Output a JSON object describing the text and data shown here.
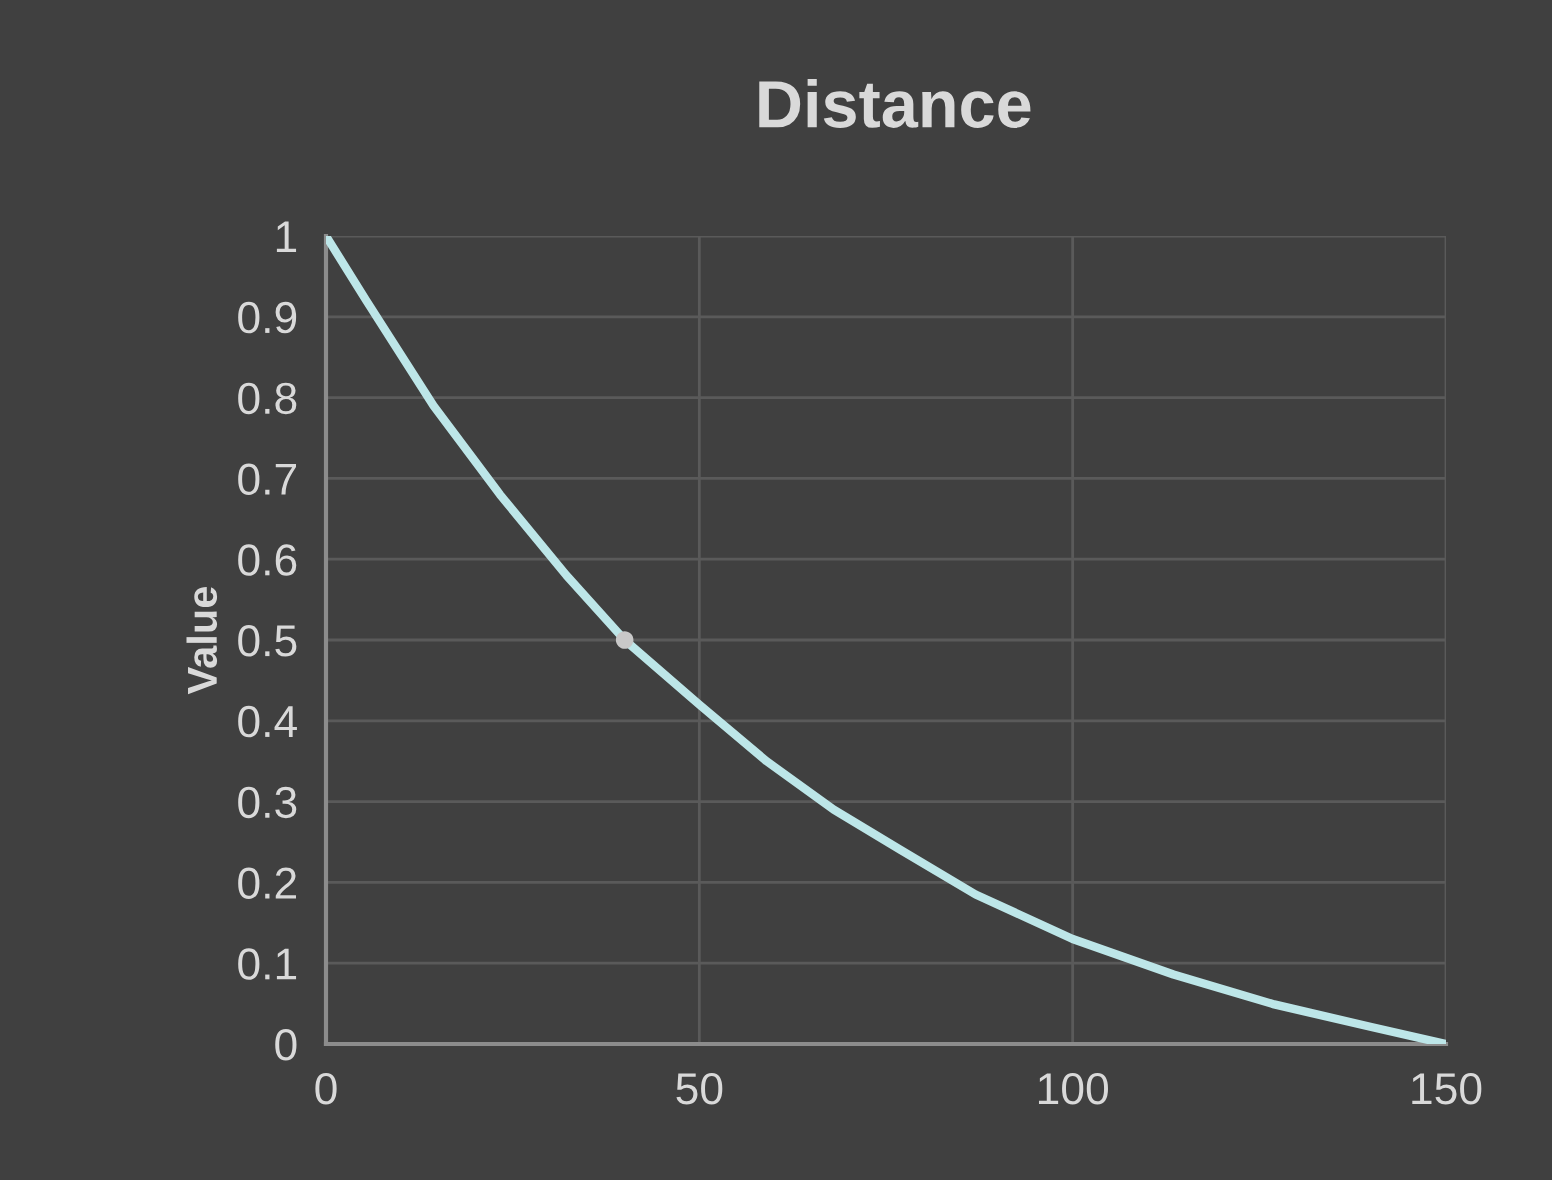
{
  "chart_data": {
    "type": "line",
    "title": "Distance",
    "ylabel": "Value",
    "series": [
      {
        "color": "#bde6e8",
        "x": [
          0,
          5.4,
          14.4,
          23.3,
          32.2,
          40,
          50,
          59,
          68,
          77,
          87,
          100,
          113.5,
          127,
          140,
          150
        ],
        "values": [
          1,
          0.92,
          0.79,
          0.68,
          0.58,
          0.5,
          0.42,
          0.35,
          0.29,
          0.24,
          0.185,
          0.13,
          0.086,
          0.049,
          0.021,
          0
        ]
      },
      {
        "type": "scatter",
        "color": "#c8c8c8",
        "x": [
          40
        ],
        "values": [
          0.5
        ]
      }
    ],
    "xlim": [
      0,
      150
    ],
    "xticks": [
      0,
      50,
      100,
      150
    ],
    "ylim": [
      0,
      1
    ],
    "yticks": [
      0,
      0.1,
      0.2,
      0.3,
      0.4,
      0.5,
      0.6,
      0.7,
      0.8,
      0.9,
      1
    ],
    "grid": true
  }
}
